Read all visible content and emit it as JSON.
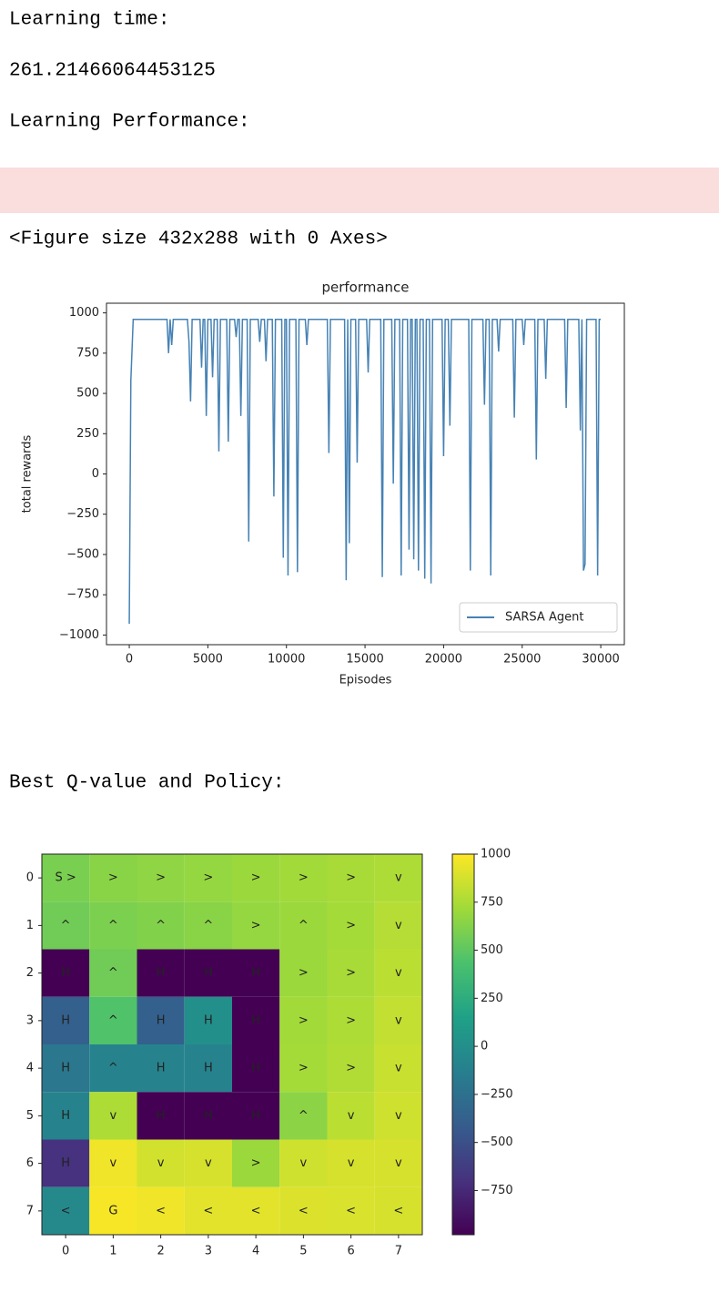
{
  "cells": {
    "learning_time_label": "Learning time:",
    "learning_time_value": "261.21466064453125",
    "performance_label": "Learning Performance:",
    "figure_note": "<Figure size 432x288 with 0 Axes>",
    "policy_label": "Best Q-value and Policy:"
  },
  "chart_data": [
    {
      "type": "line",
      "title": "performance",
      "x_label": "Episodes",
      "y_label": "total rewards",
      "x": [
        0,
        100,
        250,
        2400,
        2500,
        2600,
        2700,
        2800,
        3700,
        3800,
        3900,
        4000,
        4500,
        4600,
        4700,
        4800,
        4900,
        5000,
        5200,
        5300,
        5400,
        5600,
        5700,
        5800,
        6200,
        6300,
        6400,
        6700,
        6800,
        6900,
        7000,
        7100,
        7200,
        7500,
        7600,
        7700,
        8200,
        8300,
        8400,
        8600,
        8700,
        8800,
        9100,
        9200,
        9300,
        9700,
        9800,
        9900,
        10000,
        10100,
        10200,
        10600,
        10700,
        10800,
        11200,
        11300,
        11400,
        12600,
        12700,
        12800,
        13700,
        13800,
        13900,
        14000,
        14100,
        14400,
        14500,
        14600,
        15100,
        15200,
        15300,
        16000,
        16100,
        16200,
        16700,
        16800,
        16900,
        17200,
        17300,
        17400,
        17700,
        17800,
        17900,
        18000,
        18100,
        18200,
        18300,
        18400,
        18500,
        18700,
        18800,
        18900,
        19100,
        19200,
        19300,
        19900,
        20000,
        20100,
        20300,
        20400,
        20500,
        21600,
        21700,
        21800,
        22500,
        22600,
        22700,
        22900,
        23000,
        23100,
        23400,
        23500,
        23600,
        24400,
        24500,
        24600,
        25000,
        25100,
        25200,
        25800,
        25900,
        26000,
        26400,
        26500,
        26600,
        27700,
        27800,
        27900,
        28600,
        28700,
        28800,
        28900,
        29000,
        29100,
        29700,
        29800,
        29900,
        30000
      ],
      "series": [
        {
          "name": "SARSA Agent",
          "color": "#4682b4",
          "values": [
            -930,
            580,
            960,
            960,
            750,
            960,
            800,
            960,
            960,
            820,
            450,
            960,
            960,
            660,
            960,
            960,
            360,
            960,
            960,
            600,
            960,
            960,
            140,
            960,
            960,
            200,
            960,
            960,
            850,
            960,
            960,
            360,
            960,
            960,
            -420,
            960,
            960,
            820,
            960,
            960,
            700,
            960,
            960,
            -140,
            960,
            960,
            -520,
            960,
            960,
            -630,
            960,
            960,
            -610,
            960,
            960,
            800,
            960,
            960,
            130,
            960,
            960,
            -660,
            960,
            -430,
            960,
            960,
            70,
            960,
            960,
            630,
            960,
            960,
            -640,
            960,
            960,
            -60,
            960,
            960,
            -630,
            960,
            960,
            -470,
            960,
            960,
            -530,
            960,
            960,
            -600,
            960,
            960,
            -650,
            960,
            960,
            -680,
            960,
            960,
            110,
            960,
            960,
            300,
            960,
            960,
            -600,
            960,
            960,
            430,
            960,
            960,
            -630,
            960,
            960,
            760,
            960,
            960,
            350,
            960,
            960,
            800,
            960,
            960,
            90,
            960,
            960,
            590,
            960,
            960,
            410,
            960,
            960,
            270,
            960,
            -600,
            -560,
            960,
            960,
            -630,
            960,
            960
          ]
        }
      ],
      "xlim": [
        -1450,
        31500
      ],
      "xticks": [
        0,
        5000,
        10000,
        15000,
        20000,
        25000,
        30000
      ],
      "ylim": [
        -1060,
        1060
      ],
      "yticks": [
        {
          "value": -1000,
          "label": "−1000"
        },
        {
          "value": -750,
          "label": "−750"
        },
        {
          "value": -500,
          "label": "−500"
        },
        {
          "value": -250,
          "label": "−250"
        },
        0,
        250,
        500,
        750,
        1000
      ],
      "legend": "lower right",
      "grid": false
    },
    {
      "type": "heatmap",
      "colormap": "viridis",
      "xlim": [
        -0.5,
        7.5
      ],
      "xticks": [
        0,
        1,
        2,
        3,
        4,
        5,
        6,
        7
      ],
      "ylim": [
        7.5,
        -0.5
      ],
      "yticks": [
        0,
        1,
        2,
        3,
        4,
        5,
        6,
        7
      ],
      "values": [
        [
          590,
          640,
          660,
          680,
          700,
          720,
          740,
          760
        ],
        [
          560,
          600,
          620,
          640,
          680,
          700,
          730,
          780
        ],
        [
          -980,
          560,
          -980,
          -980,
          -980,
          700,
          740,
          800
        ],
        [
          -380,
          450,
          -380,
          0,
          -980,
          720,
          760,
          820
        ],
        [
          -200,
          -100,
          -100,
          -100,
          -980,
          730,
          770,
          840
        ],
        [
          -100,
          760,
          -980,
          -980,
          -980,
          650,
          800,
          860
        ],
        [
          -700,
          960,
          870,
          880,
          700,
          860,
          880,
          880
        ],
        [
          -50,
          980,
          960,
          920,
          920,
          900,
          890,
          880
        ]
      ],
      "annotations": [
        [
          "S >",
          ">",
          ">",
          ">",
          ">",
          ">",
          ">",
          "v"
        ],
        [
          "^",
          "^",
          "^",
          "^",
          ">",
          "^",
          ">",
          "v"
        ],
        [
          "H",
          "^",
          "H",
          "H",
          "H",
          ">",
          ">",
          "v"
        ],
        [
          "H",
          "^",
          "H",
          "H",
          "H",
          ">",
          ">",
          "v"
        ],
        [
          "H",
          "^",
          "H",
          "H",
          "H",
          ">",
          ">",
          "v"
        ],
        [
          "H",
          "v",
          "H",
          "H",
          "H",
          "^",
          "v",
          "v"
        ],
        [
          "H",
          "v",
          "v",
          "v",
          ">",
          "v",
          "v",
          "v"
        ],
        [
          "<",
          "G",
          "<",
          "<",
          "<",
          "<",
          "<",
          "<"
        ]
      ],
      "clim": [
        -980,
        1000
      ],
      "cticks": [
        {
          "value": -750,
          "label": "−750"
        },
        {
          "value": -500,
          "label": "−500"
        },
        {
          "value": -250,
          "label": "−250"
        },
        0,
        250,
        500,
        750,
        1000
      ]
    }
  ]
}
